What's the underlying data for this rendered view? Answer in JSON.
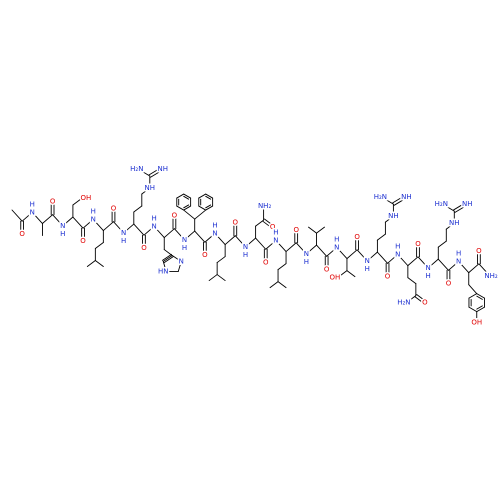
{
  "structure": {
    "acetyl_carbonyl": "O",
    "residues": [
      {
        "amide": [
          "H",
          "N"
        ],
        "side_chain": [],
        "carbonyl": "O"
      },
      {
        "amide": [
          "H",
          "N"
        ],
        "side_chain": [
          "OH"
        ],
        "carbonyl": "O"
      },
      {
        "amide": [
          "H",
          "N"
        ],
        "side_chain": [],
        "carbonyl": "O"
      },
      {
        "amide": [
          "H",
          "N"
        ],
        "side_chain": [
          "NH",
          "H₂N",
          "NH"
        ],
        "carbonyl": "O"
      },
      {
        "amide": [
          "H",
          "N"
        ],
        "side_chain": [
          "HN",
          "N"
        ],
        "carbonyl": "O"
      },
      {
        "amide": [
          "H",
          "N"
        ],
        "side_chain": [],
        "carbonyl": "O"
      },
      {
        "amide": [
          "H",
          "N"
        ],
        "side_chain": [],
        "carbonyl": "O"
      },
      {
        "amide": [
          "H",
          "N"
        ],
        "side_chain": [
          "NH₂",
          "O"
        ],
        "carbonyl": "O"
      },
      {
        "amide": [
          "H",
          "N"
        ],
        "side_chain": [],
        "carbonyl": "O"
      },
      {
        "amide": [
          "H",
          "N"
        ],
        "side_chain": [],
        "carbonyl": "O"
      },
      {
        "amide": [
          "H",
          "N"
        ],
        "side_chain": [
          "OH"
        ],
        "carbonyl": "O"
      },
      {
        "amide": [
          "H",
          "N"
        ],
        "side_chain": [
          "NH",
          "H₂N",
          "NH"
        ],
        "carbonyl": "O"
      },
      {
        "amide": [
          "H",
          "N"
        ],
        "side_chain": [
          "H₂N",
          "O"
        ],
        "carbonyl": "O"
      },
      {
        "amide": [
          "H",
          "N"
        ],
        "side_chain": [
          "NH",
          "H₂N",
          "NH"
        ],
        "carbonyl": "O"
      },
      {
        "amide": [
          "H",
          "N"
        ],
        "side_chain": [
          "OH"
        ],
        "carbonyl": "O"
      }
    ],
    "c_terminal_amide": "NH₂"
  }
}
